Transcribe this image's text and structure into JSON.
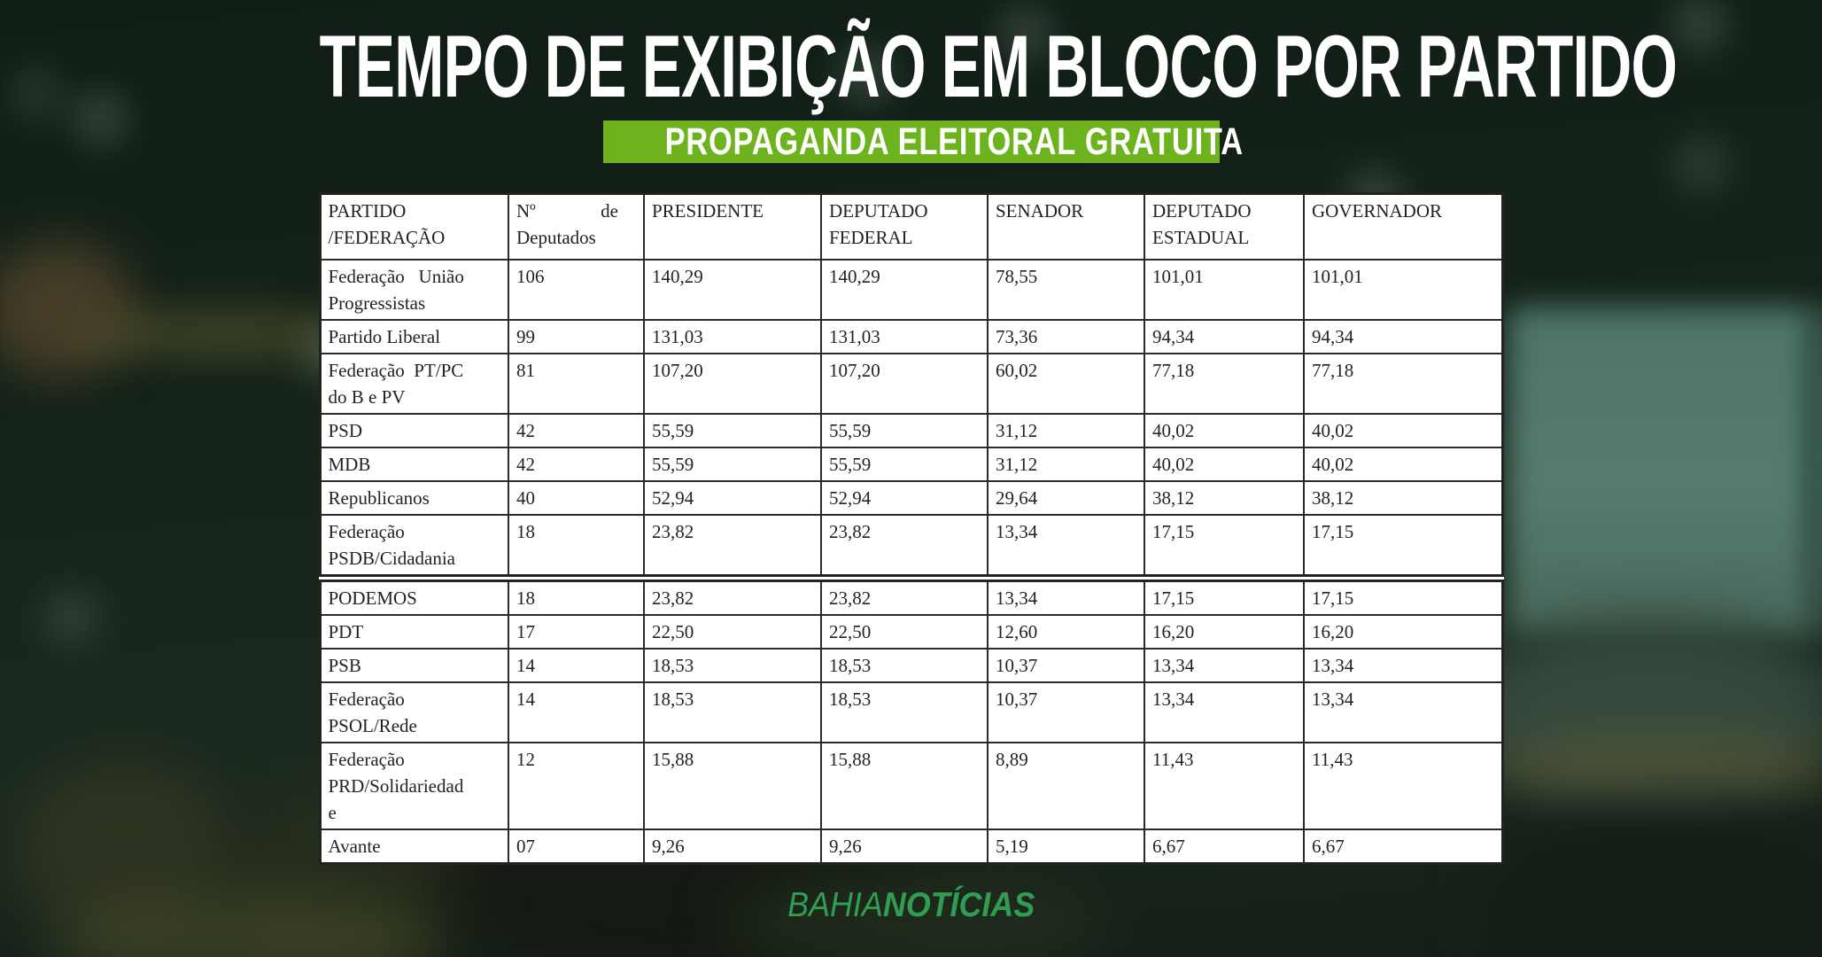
{
  "chart_data": {
    "type": "table",
    "title": "TEMPO DE EXIBIÇÃO EM BLOCO POR PARTIDO",
    "subtitle": "PROPAGANDA ELEITORAL GRATUITA",
    "columns": [
      [
        "PARTIDO",
        "/FEDERAÇÃO"
      ],
      [
        "Nº              de",
        "Deputados"
      ],
      "PRESIDENTE",
      [
        "DEPUTADO",
        "FEDERAL"
      ],
      "SENADOR",
      [
        "DEPUTADO",
        "ESTADUAL"
      ],
      "GOVERNADOR"
    ],
    "sections": [
      {
        "rows": [
          [
            [
              "Federação   União",
              "Progressistas"
            ],
            "106",
            "140,29",
            "140,29",
            "78,55",
            "101,01",
            "101,01"
          ],
          [
            "Partido Liberal",
            "99",
            "131,03",
            "131,03",
            "73,36",
            "94,34",
            "94,34"
          ],
          [
            [
              "Federação  PT/PC",
              "do B e PV"
            ],
            "81",
            "107,20",
            "107,20",
            "60,02",
            "77,18",
            "77,18"
          ],
          [
            "PSD",
            "42",
            "55,59",
            "55,59",
            "31,12",
            "40,02",
            "40,02"
          ],
          [
            "MDB",
            "42",
            "55,59",
            "55,59",
            "31,12",
            "40,02",
            "40,02"
          ],
          [
            "Republicanos",
            "40",
            "52,94",
            "52,94",
            "29,64",
            "38,12",
            "38,12"
          ],
          [
            [
              "Federação",
              "PSDB/Cidadania"
            ],
            "18",
            "23,82",
            "23,82",
            "13,34",
            "17,15",
            "17,15"
          ]
        ]
      },
      {
        "rows": [
          [
            "PODEMOS",
            "18",
            "23,82",
            "23,82",
            "13,34",
            "17,15",
            "17,15"
          ],
          [
            "PDT",
            "17",
            "22,50",
            "22,50",
            "12,60",
            "16,20",
            "16,20"
          ],
          [
            "PSB",
            "14",
            "18,53",
            "18,53",
            "10,37",
            "13,34",
            "13,34"
          ],
          [
            [
              "Federação",
              "PSOL/Rede"
            ],
            "14",
            "18,53",
            "18,53",
            "10,37",
            "13,34",
            "13,34"
          ],
          [
            [
              "Federação",
              "PRD/Solidariedad",
              "e"
            ],
            "12",
            "15,88",
            "15,88",
            "8,89",
            "11,43",
            "11,43"
          ],
          [
            "Avante",
            "07",
            "9,26",
            "9,26",
            "5,19",
            "6,67",
            "6,67"
          ]
        ]
      }
    ]
  },
  "footer": {
    "brand_light": "BAHIA",
    "brand_bold": "NOTÍCIAS"
  },
  "colors": {
    "badge_green": "#6db31d",
    "logo_green": "#2f9e53",
    "paper": "#ffffff",
    "ink": "#262220",
    "bg_dark": "#15231a"
  }
}
